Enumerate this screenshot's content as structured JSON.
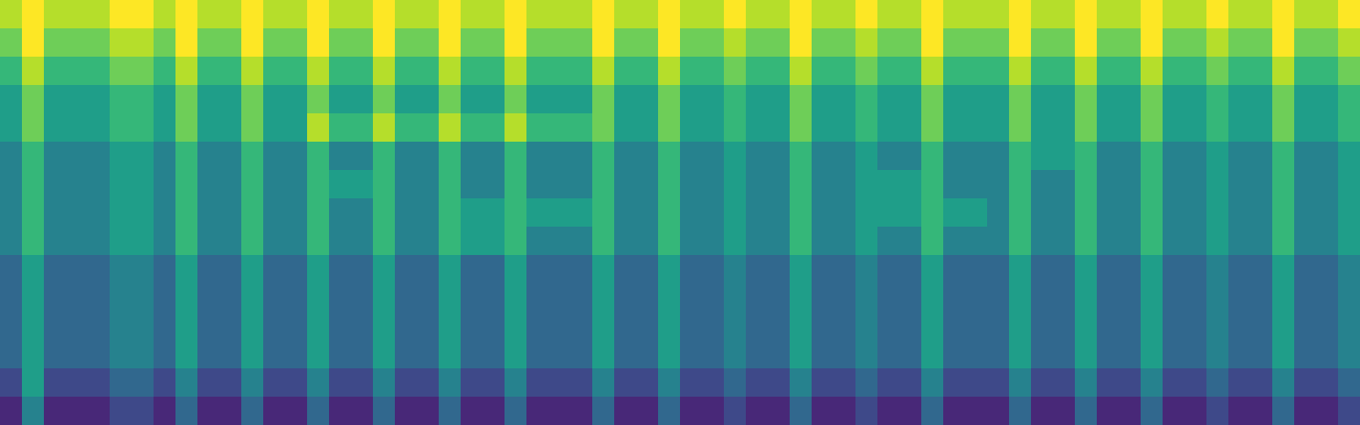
{
  "chart_data": {
    "type": "heatmap",
    "tick_labels": false,
    "zlim": [
      0,
      9
    ],
    "cells": [
      [
        8,
        9,
        8,
        8,
        8,
        9,
        9,
        8,
        9,
        8,
        8,
        9,
        8,
        8,
        9,
        8,
        8,
        9,
        8,
        8,
        9,
        8,
        8,
        9,
        8,
        8,
        8,
        9,
        8,
        8,
        9,
        8,
        8,
        9,
        8,
        8,
        9,
        8,
        8,
        9,
        8,
        8,
        9,
        8,
        8,
        8,
        9,
        8,
        8,
        9,
        8,
        8,
        9,
        8,
        8,
        9,
        8,
        8,
        9,
        8,
        8,
        9
      ],
      [
        7,
        9,
        7,
        7,
        7,
        8,
        8,
        7,
        9,
        7,
        7,
        9,
        7,
        7,
        9,
        7,
        7,
        9,
        7,
        7,
        9,
        7,
        7,
        9,
        7,
        7,
        7,
        9,
        7,
        7,
        9,
        7,
        7,
        8,
        7,
        7,
        9,
        7,
        7,
        8,
        7,
        7,
        9,
        7,
        7,
        7,
        9,
        7,
        7,
        9,
        7,
        7,
        9,
        7,
        7,
        8,
        7,
        7,
        9,
        7,
        7,
        8
      ],
      [
        6,
        8,
        6,
        6,
        6,
        7,
        7,
        6,
        8,
        6,
        6,
        8,
        6,
        6,
        8,
        6,
        6,
        8,
        6,
        6,
        8,
        6,
        6,
        8,
        6,
        6,
        6,
        8,
        6,
        6,
        8,
        6,
        6,
        7,
        6,
        6,
        8,
        6,
        6,
        7,
        6,
        6,
        8,
        6,
        6,
        6,
        8,
        6,
        6,
        8,
        6,
        6,
        8,
        6,
        6,
        7,
        6,
        6,
        8,
        6,
        6,
        7
      ],
      [
        5,
        7,
        5,
        5,
        5,
        6,
        6,
        5,
        7,
        5,
        5,
        7,
        5,
        5,
        7,
        5,
        5,
        7,
        5,
        5,
        7,
        5,
        5,
        7,
        5,
        5,
        5,
        7,
        5,
        5,
        7,
        5,
        5,
        6,
        5,
        5,
        7,
        5,
        5,
        6,
        5,
        5,
        7,
        5,
        5,
        5,
        7,
        5,
        5,
        7,
        5,
        5,
        7,
        5,
        5,
        6,
        5,
        5,
        7,
        5,
        5,
        6
      ],
      [
        5,
        7,
        5,
        5,
        5,
        6,
        6,
        5,
        7,
        5,
        5,
        7,
        5,
        5,
        8,
        6,
        6,
        8,
        6,
        6,
        8,
        6,
        6,
        8,
        6,
        6,
        6,
        7,
        5,
        5,
        7,
        5,
        5,
        6,
        5,
        5,
        7,
        5,
        5,
        6,
        5,
        5,
        7,
        5,
        5,
        5,
        7,
        5,
        5,
        7,
        5,
        5,
        7,
        5,
        5,
        6,
        5,
        5,
        7,
        5,
        5,
        6
      ],
      [
        4,
        6,
        4,
        4,
        4,
        5,
        5,
        4,
        6,
        4,
        4,
        6,
        4,
        4,
        6,
        4,
        4,
        6,
        4,
        4,
        6,
        4,
        4,
        6,
        4,
        4,
        4,
        6,
        4,
        4,
        6,
        4,
        4,
        5,
        4,
        4,
        6,
        4,
        4,
        5,
        4,
        4,
        6,
        4,
        4,
        4,
        6,
        5,
        5,
        6,
        4,
        4,
        6,
        4,
        4,
        5,
        4,
        4,
        6,
        4,
        4,
        5
      ],
      [
        4,
        6,
        4,
        4,
        4,
        5,
        5,
        4,
        6,
        4,
        4,
        6,
        4,
        4,
        6,
        5,
        5,
        6,
        4,
        4,
        6,
        4,
        4,
        6,
        4,
        4,
        4,
        6,
        4,
        4,
        6,
        4,
        4,
        5,
        4,
        4,
        6,
        4,
        4,
        5,
        5,
        5,
        6,
        4,
        4,
        4,
        6,
        4,
        4,
        6,
        4,
        4,
        6,
        4,
        4,
        5,
        4,
        4,
        6,
        4,
        4,
        5
      ],
      [
        4,
        6,
        4,
        4,
        4,
        5,
        5,
        4,
        6,
        4,
        4,
        6,
        4,
        4,
        6,
        4,
        4,
        6,
        4,
        4,
        6,
        5,
        5,
        6,
        5,
        5,
        5,
        6,
        4,
        4,
        6,
        4,
        4,
        5,
        4,
        4,
        6,
        4,
        4,
        5,
        5,
        5,
        6,
        5,
        5,
        4,
        6,
        4,
        4,
        6,
        4,
        4,
        6,
        4,
        4,
        5,
        4,
        4,
        6,
        4,
        4,
        5
      ],
      [
        4,
        6,
        4,
        4,
        4,
        5,
        5,
        4,
        6,
        4,
        4,
        6,
        4,
        4,
        6,
        4,
        4,
        6,
        4,
        4,
        6,
        5,
        5,
        6,
        4,
        4,
        4,
        6,
        4,
        4,
        6,
        4,
        4,
        5,
        4,
        4,
        6,
        4,
        4,
        5,
        4,
        4,
        6,
        4,
        4,
        4,
        6,
        4,
        4,
        6,
        4,
        4,
        6,
        4,
        4,
        5,
        4,
        4,
        6,
        4,
        4,
        5
      ],
      [
        3,
        5,
        3,
        3,
        3,
        4,
        4,
        3,
        5,
        3,
        3,
        5,
        3,
        3,
        5,
        3,
        3,
        5,
        3,
        3,
        5,
        3,
        3,
        5,
        3,
        3,
        3,
        5,
        3,
        3,
        5,
        3,
        3,
        4,
        3,
        3,
        5,
        3,
        3,
        4,
        3,
        3,
        5,
        3,
        3,
        3,
        5,
        3,
        3,
        5,
        3,
        3,
        5,
        3,
        3,
        4,
        3,
        3,
        5,
        3,
        3,
        4
      ],
      [
        3,
        5,
        3,
        3,
        3,
        4,
        4,
        3,
        5,
        3,
        3,
        5,
        3,
        3,
        5,
        3,
        3,
        5,
        3,
        3,
        5,
        3,
        3,
        5,
        3,
        3,
        3,
        5,
        3,
        3,
        5,
        3,
        3,
        4,
        3,
        3,
        5,
        3,
        3,
        4,
        3,
        3,
        5,
        3,
        3,
        3,
        5,
        3,
        3,
        5,
        3,
        3,
        5,
        3,
        3,
        4,
        3,
        3,
        5,
        3,
        3,
        4
      ],
      [
        3,
        5,
        3,
        3,
        3,
        4,
        4,
        3,
        5,
        3,
        3,
        5,
        3,
        3,
        5,
        3,
        3,
        5,
        3,
        3,
        5,
        3,
        3,
        5,
        3,
        3,
        3,
        5,
        3,
        3,
        5,
        3,
        3,
        4,
        3,
        3,
        5,
        3,
        3,
        4,
        3,
        3,
        5,
        3,
        3,
        3,
        5,
        3,
        3,
        5,
        3,
        3,
        5,
        3,
        3,
        4,
        3,
        3,
        5,
        3,
        3,
        4
      ],
      [
        3,
        5,
        3,
        3,
        3,
        4,
        4,
        3,
        5,
        3,
        3,
        5,
        3,
        3,
        5,
        3,
        3,
        5,
        3,
        3,
        5,
        3,
        3,
        5,
        3,
        3,
        3,
        5,
        3,
        3,
        5,
        3,
        3,
        4,
        3,
        3,
        5,
        3,
        3,
        4,
        3,
        3,
        5,
        3,
        3,
        3,
        5,
        3,
        3,
        5,
        3,
        3,
        5,
        3,
        3,
        4,
        3,
        3,
        5,
        3,
        3,
        4
      ],
      [
        2,
        5,
        2,
        2,
        2,
        3,
        3,
        2,
        4,
        2,
        2,
        4,
        2,
        2,
        4,
        2,
        2,
        4,
        2,
        2,
        4,
        2,
        2,
        4,
        2,
        2,
        2,
        4,
        2,
        2,
        4,
        2,
        2,
        3,
        2,
        2,
        4,
        2,
        2,
        3,
        2,
        2,
        4,
        2,
        2,
        2,
        4,
        2,
        2,
        4,
        2,
        2,
        4,
        2,
        2,
        3,
        2,
        2,
        4,
        2,
        2,
        3
      ],
      [
        1,
        4,
        1,
        1,
        1,
        2,
        2,
        1,
        3,
        1,
        1,
        3,
        1,
        1,
        3,
        1,
        1,
        3,
        1,
        1,
        3,
        1,
        1,
        3,
        1,
        1,
        1,
        3,
        1,
        1,
        3,
        1,
        1,
        2,
        1,
        1,
        3,
        1,
        1,
        2,
        1,
        1,
        3,
        1,
        1,
        1,
        3,
        1,
        1,
        3,
        1,
        1,
        3,
        1,
        1,
        2,
        1,
        1,
        3,
        1,
        1,
        2
      ]
    ]
  }
}
